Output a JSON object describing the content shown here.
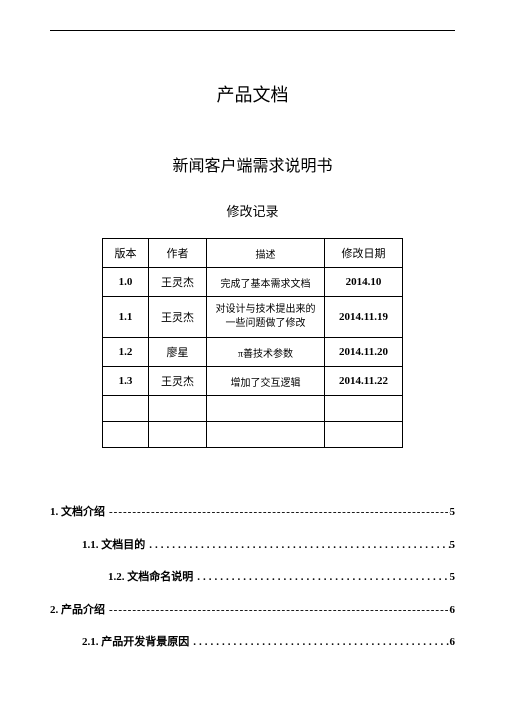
{
  "titles": {
    "main": "产品文档",
    "sub": "新闻客户端需求说明书",
    "section": "修改记录"
  },
  "table": {
    "headers": {
      "version": "版本",
      "author": "作者",
      "desc": "描述",
      "date": "修改日期"
    },
    "rows": [
      {
        "version": "1.0",
        "author": "王灵杰",
        "desc": "完成了基本需求文档",
        "date": "2014.10"
      },
      {
        "version": "1.1",
        "author": "王灵杰",
        "desc": "对设计与技术提出来的一些问题做了修改",
        "date": "2014.11.19"
      },
      {
        "version": "1.2",
        "author": "廖星",
        "desc": "π善技术参数",
        "date": "2014.11.20"
      },
      {
        "version": "1.3",
        "author": "王灵杰",
        "desc": "增加了交互逻辑",
        "date": "2014.11.22"
      }
    ],
    "empty_rows": 2,
    "col_widths": {
      "version": 46,
      "author": 58,
      "desc": 118,
      "date": 78
    }
  },
  "toc": [
    {
      "level": 1,
      "label": "1. 文档介绍",
      "style": "dash",
      "page": "5"
    },
    {
      "level": 2,
      "label": "1.1. 文档目的",
      "style": "dot",
      "page": "5"
    },
    {
      "level": 3,
      "label": "1.2. 文档命名说明",
      "style": "dot",
      "page": "5"
    },
    {
      "level": 1,
      "label": "2. 产品介绍",
      "style": "dash",
      "page": "6"
    },
    {
      "level": 2,
      "label": "2.1. 产品开发背景原因",
      "style": "dot",
      "page": "6"
    }
  ],
  "colors": {
    "text": "#000000",
    "background": "#ffffff",
    "border": "#000000"
  },
  "fonts": {
    "main_title_size": 18,
    "sub_title_size": 16,
    "section_title_size": 13,
    "table_size": 11,
    "toc_size": 11
  }
}
